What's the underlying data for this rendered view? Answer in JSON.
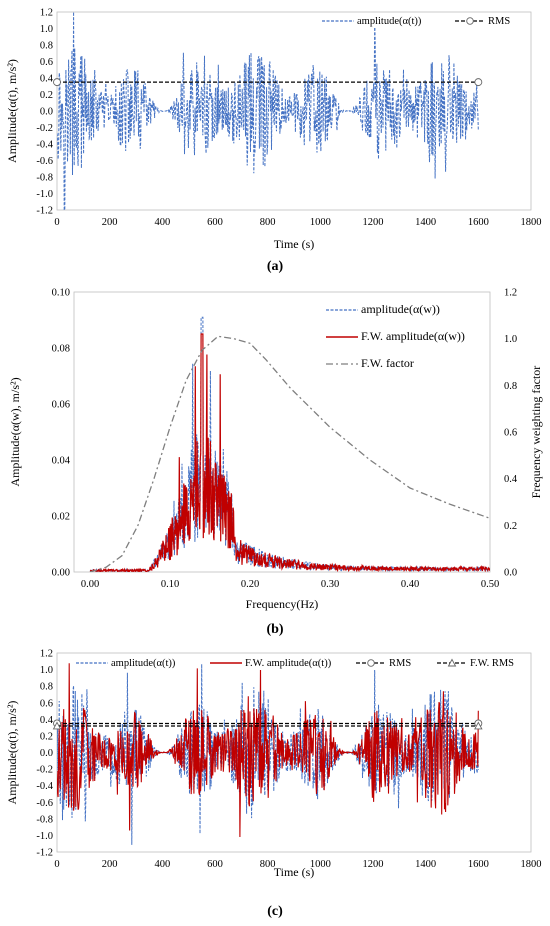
{
  "panels": [
    {
      "id": "a",
      "caption": "(a)",
      "chart_data": {
        "type": "line",
        "xlabel": "Time (s)",
        "ylabel": "Amplitude(α(t), m/s²)",
        "xlim": [
          0,
          1800
        ],
        "ylim": [
          -1.2,
          1.2
        ],
        "xticks": [
          0,
          200,
          400,
          600,
          800,
          1000,
          1200,
          1400,
          1600,
          1800
        ],
        "yticks": [
          -1.2,
          -1.0,
          -0.8,
          -0.6,
          -0.4,
          -0.2,
          0.0,
          0.2,
          0.4,
          0.6,
          0.8,
          1.0,
          1.2
        ],
        "ytick_decimals": 1,
        "grid": false,
        "legend_position": "top-right",
        "series": [
          {
            "name": "amplitude(α(t))",
            "kind": "noise",
            "style": "dash",
            "color": "#4472C4",
            "x_range": [
              0,
              1600
            ],
            "peak_hint": 1.2
          },
          {
            "name": "RMS",
            "kind": "constant",
            "style": "dash",
            "color": "#000000",
            "marker": "circle",
            "x": [
              0,
              1600
            ],
            "value": 0.35
          }
        ]
      }
    },
    {
      "id": "b",
      "caption": "(b)",
      "chart_data": {
        "type": "line",
        "xlabel": "Frequency(Hz)",
        "ylabel": "Amplitude(α(w), m/s²)",
        "y2label": "Frequency weighting factor",
        "xlim": [
          -0.02,
          0.5
        ],
        "ylim": [
          0,
          0.1
        ],
        "y2lim": [
          0,
          1.2
        ],
        "xticks": [
          0.0,
          0.1,
          0.2,
          0.3,
          0.4,
          0.5
        ],
        "xtick_decimals": 2,
        "yticks": [
          0.0,
          0.02,
          0.04,
          0.06,
          0.08,
          0.1
        ],
        "ytick_decimals": 2,
        "y2ticks": [
          0.0,
          0.2,
          0.4,
          0.6,
          0.8,
          1.0,
          1.2
        ],
        "y2tick_decimals": 1,
        "grid": false,
        "legend_position": "top-right",
        "series": [
          {
            "name": "amplitude(α(w))",
            "kind": "spectrum",
            "style": "dash",
            "color": "#4472C4",
            "peak": 0.091,
            "center": 0.14
          },
          {
            "name": "F.W. amplitude(α(w))",
            "kind": "spectrum",
            "style": "solid",
            "color": "#C00000",
            "peak": 0.085,
            "center": 0.14
          },
          {
            "name": "F.W. factor",
            "kind": "curve",
            "style": "dashdot",
            "color": "#7F7F7F",
            "axis": "y2",
            "x": [
              0.0,
              0.02,
              0.04,
              0.06,
              0.08,
              0.1,
              0.12,
              0.14,
              0.16,
              0.18,
              0.2,
              0.22,
              0.25,
              0.3,
              0.35,
              0.4,
              0.45,
              0.5
            ],
            "y": [
              0.0,
              0.02,
              0.07,
              0.2,
              0.4,
              0.62,
              0.82,
              0.95,
              1.01,
              1.0,
              0.98,
              0.91,
              0.79,
              0.62,
              0.48,
              0.36,
              0.29,
              0.23
            ]
          }
        ]
      }
    },
    {
      "id": "c",
      "caption": "(c)",
      "chart_data": {
        "type": "line",
        "xlabel": "Time (s)",
        "ylabel": "Amplitude(α(t), m/s²)",
        "xlim": [
          0,
          1800
        ],
        "ylim": [
          -1.2,
          1.2
        ],
        "xticks": [
          0,
          200,
          400,
          600,
          800,
          1000,
          1200,
          1400,
          1600,
          1800
        ],
        "yticks": [
          -1.2,
          -1.0,
          -0.8,
          -0.6,
          -0.4,
          -0.2,
          0.0,
          0.2,
          0.4,
          0.6,
          0.8,
          1.0,
          1.2
        ],
        "ytick_decimals": 1,
        "grid": false,
        "legend_position": "top",
        "series": [
          {
            "name": "amplitude(α(t))",
            "kind": "noise",
            "style": "dash",
            "color": "#4472C4",
            "x_range": [
              0,
              1600
            ],
            "peak_hint": 1.2
          },
          {
            "name": "F.W. amplitude(α(t))",
            "kind": "noise",
            "style": "solid",
            "color": "#C00000",
            "x_range": [
              0,
              1600
            ],
            "peak_hint": 1.1
          },
          {
            "name": "RMS",
            "kind": "constant",
            "style": "dash",
            "color": "#000000",
            "marker": "circle",
            "x": [
              0,
              1600
            ],
            "value": 0.35
          },
          {
            "name": "F.W. RMS",
            "kind": "constant",
            "style": "dash",
            "color": "#000000",
            "marker": "triangle",
            "x": [
              0,
              1600
            ],
            "value": 0.32
          }
        ]
      }
    }
  ]
}
